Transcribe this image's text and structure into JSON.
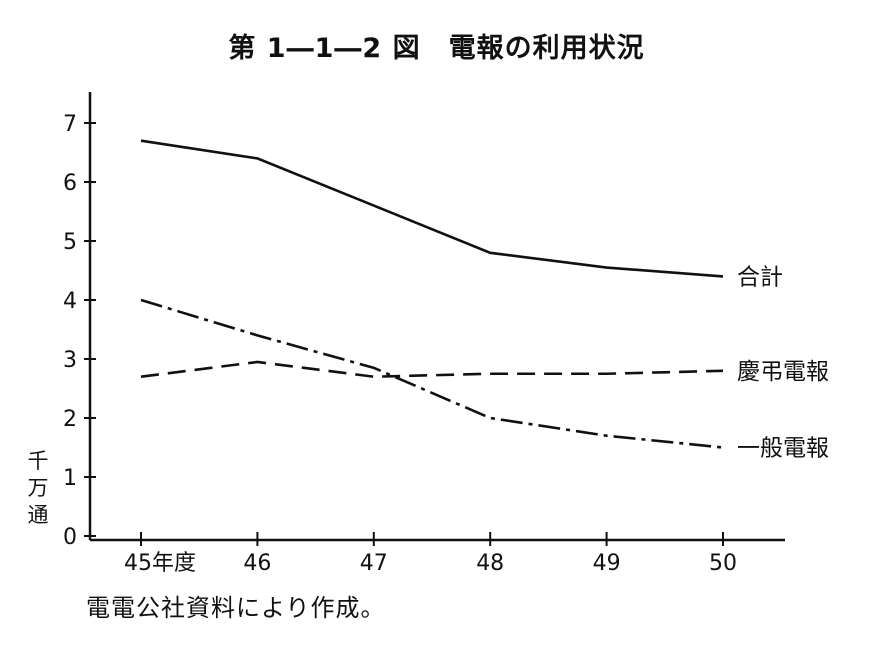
{
  "title": "第 1―1―2 図　電報の利用状況",
  "source_note": "電電公社資料により作成。",
  "chart_data": {
    "type": "line",
    "categories": [
      "45年度",
      "46",
      "47",
      "48",
      "49",
      "50"
    ],
    "ylabel": [
      "千",
      "万",
      "通"
    ],
    "ylim": [
      0,
      7.5
    ],
    "yticks": [
      "0",
      "1",
      "2",
      "3",
      "4",
      "5",
      "6",
      "7"
    ],
    "grid": false,
    "series": [
      {
        "name": "合計",
        "style": "solid",
        "values": [
          6.7,
          6.4,
          5.6,
          4.8,
          4.55,
          4.4
        ]
      },
      {
        "name": "慶弔電報",
        "style": "dashed",
        "values": [
          2.7,
          2.95,
          2.7,
          2.75,
          2.75,
          2.8
        ]
      },
      {
        "name": "一般電報",
        "style": "dashdot",
        "values": [
          4.0,
          3.4,
          2.85,
          2.0,
          1.7,
          1.5
        ]
      }
    ]
  }
}
